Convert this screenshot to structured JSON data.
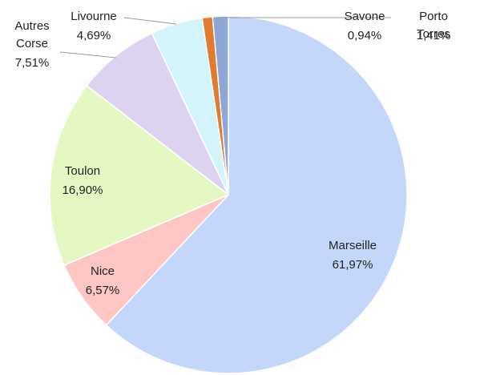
{
  "chart_data": {
    "type": "pie",
    "categories": [
      "Marseille",
      "Nice",
      "Toulon",
      "Autres Corse",
      "Livourne",
      "Savone",
      "Porto Torres"
    ],
    "values": [
      61.97,
      6.57,
      16.9,
      7.51,
      4.69,
      0.94,
      1.41
    ],
    "value_labels": [
      "61,97%",
      "6,57%",
      "16,90%",
      "7,51%",
      "4,69%",
      "0,94%",
      "1,41%"
    ],
    "colors": [
      "#c4d7fb",
      "#ffc6c6",
      "#e5f8c3",
      "#ddd3f1",
      "#d4f4fc",
      "#e07b30",
      "#8ea6d4"
    ]
  }
}
